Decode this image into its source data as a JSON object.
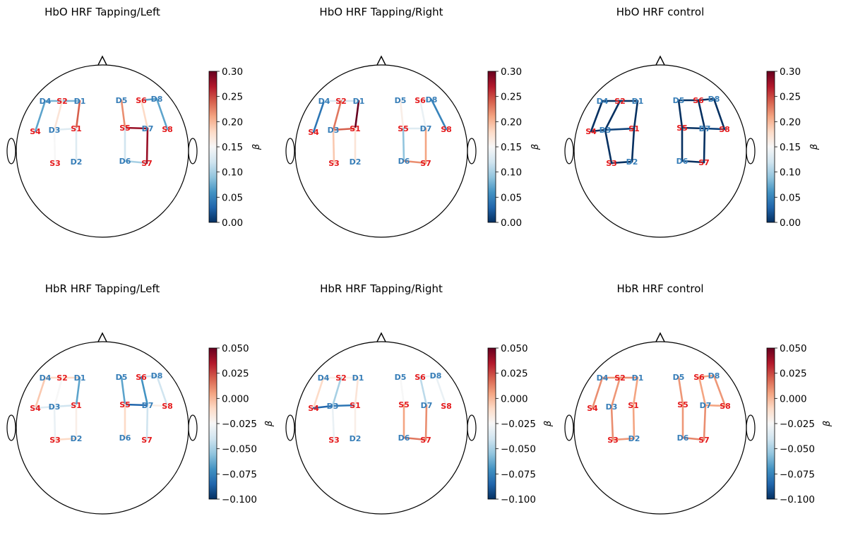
{
  "chart_data": [
    {
      "type": "topomap",
      "title": "HbO HRF Tapping/Left",
      "colorbar": {
        "label": "β",
        "min": 0.0,
        "max": 0.3,
        "ticks": [
          "0.00",
          "0.05",
          "0.10",
          "0.15",
          "0.20",
          "0.25",
          "0.30"
        ]
      },
      "channels": [
        {
          "pair": [
            "S4",
            "D4"
          ],
          "value": 0.07
        },
        {
          "pair": [
            "S2",
            "D4"
          ],
          "value": 0.08
        },
        {
          "pair": [
            "S2",
            "D1"
          ],
          "value": 0.08
        },
        {
          "pair": [
            "S1",
            "D1"
          ],
          "value": 0.24
        },
        {
          "pair": [
            "S1",
            "D3"
          ],
          "value": 0.13
        },
        {
          "pair": [
            "S2",
            "D3"
          ],
          "value": 0.17
        },
        {
          "pair": [
            "S3",
            "D3"
          ],
          "value": 0.15
        },
        {
          "pair": [
            "S1",
            "D2"
          ],
          "value": 0.13
        },
        {
          "pair": [
            "S5",
            "D5"
          ],
          "value": 0.22
        },
        {
          "pair": [
            "S6",
            "D8"
          ],
          "value": 0.07
        },
        {
          "pair": [
            "S6",
            "D7"
          ],
          "value": 0.18
        },
        {
          "pair": [
            "S5",
            "D7"
          ],
          "value": 0.28
        },
        {
          "pair": [
            "S8",
            "D8"
          ],
          "value": 0.07
        },
        {
          "pair": [
            "S5",
            "D6"
          ],
          "value": 0.12
        },
        {
          "pair": [
            "S7",
            "D6"
          ],
          "value": 0.1
        },
        {
          "pair": [
            "S7",
            "D7"
          ],
          "value": 0.28
        }
      ]
    },
    {
      "type": "topomap",
      "title": "HbO HRF Tapping/Right",
      "colorbar": {
        "label": "β",
        "min": 0.0,
        "max": 0.3,
        "ticks": [
          "0.00",
          "0.05",
          "0.10",
          "0.15",
          "0.20",
          "0.25",
          "0.30"
        ]
      },
      "channels": [
        {
          "pair": [
            "S4",
            "D4"
          ],
          "value": 0.04
        },
        {
          "pair": [
            "S2",
            "D4"
          ],
          "value": 0.13
        },
        {
          "pair": [
            "S2",
            "D1"
          ],
          "value": 0.12
        },
        {
          "pair": [
            "S1",
            "D1"
          ],
          "value": 0.3
        },
        {
          "pair": [
            "S1",
            "D3"
          ],
          "value": 0.24
        },
        {
          "pair": [
            "S2",
            "D3"
          ],
          "value": 0.23
        },
        {
          "pair": [
            "S3",
            "D3"
          ],
          "value": 0.19
        },
        {
          "pair": [
            "S1",
            "D2"
          ],
          "value": 0.17
        },
        {
          "pair": [
            "S5",
            "D5"
          ],
          "value": 0.16
        },
        {
          "pair": [
            "S6",
            "D8"
          ],
          "value": 0.13
        },
        {
          "pair": [
            "S6",
            "D7"
          ],
          "value": 0.14
        },
        {
          "pair": [
            "S5",
            "D7"
          ],
          "value": 0.13
        },
        {
          "pair": [
            "S8",
            "D8"
          ],
          "value": 0.05
        },
        {
          "pair": [
            "S5",
            "D6"
          ],
          "value": 0.09
        },
        {
          "pair": [
            "S7",
            "D6"
          ],
          "value": 0.22
        },
        {
          "pair": [
            "S7",
            "D7"
          ],
          "value": 0.21
        }
      ]
    },
    {
      "type": "topomap",
      "title": "HbO HRF control",
      "colorbar": {
        "label": "β",
        "min": 0.0,
        "max": 0.3,
        "ticks": [
          "0.00",
          "0.05",
          "0.10",
          "0.15",
          "0.20",
          "0.25",
          "0.30"
        ]
      },
      "channels": [
        {
          "pair": [
            "S4",
            "D4"
          ],
          "value": 0.0
        },
        {
          "pair": [
            "S2",
            "D4"
          ],
          "value": 0.0
        },
        {
          "pair": [
            "S2",
            "D1"
          ],
          "value": 0.0
        },
        {
          "pair": [
            "S1",
            "D1"
          ],
          "value": 0.0
        },
        {
          "pair": [
            "S1",
            "D3"
          ],
          "value": 0.01
        },
        {
          "pair": [
            "S2",
            "D3"
          ],
          "value": 0.0
        },
        {
          "pair": [
            "S3",
            "D3"
          ],
          "value": 0.0
        },
        {
          "pair": [
            "S3",
            "D2"
          ],
          "value": 0.0
        },
        {
          "pair": [
            "S1",
            "D2"
          ],
          "value": 0.0
        },
        {
          "pair": [
            "S4",
            "D3"
          ],
          "value": 0.0
        },
        {
          "pair": [
            "S5",
            "D5"
          ],
          "value": 0.0
        },
        {
          "pair": [
            "S6",
            "D5"
          ],
          "value": 0.0
        },
        {
          "pair": [
            "S6",
            "D8"
          ],
          "value": 0.0
        },
        {
          "pair": [
            "S6",
            "D7"
          ],
          "value": 0.0
        },
        {
          "pair": [
            "S5",
            "D7"
          ],
          "value": 0.0
        },
        {
          "pair": [
            "S8",
            "D8"
          ],
          "value": 0.0
        },
        {
          "pair": [
            "S8",
            "D7"
          ],
          "value": 0.01
        },
        {
          "pair": [
            "S5",
            "D6"
          ],
          "value": 0.0
        },
        {
          "pair": [
            "S7",
            "D6"
          ],
          "value": 0.0
        },
        {
          "pair": [
            "S7",
            "D7"
          ],
          "value": 0.0
        }
      ]
    },
    {
      "type": "topomap",
      "title": "HbR HRF Tapping/Left",
      "colorbar": {
        "label": "β",
        "min": -0.1,
        "max": 0.05,
        "ticks": [
          "0.050",
          "0.025",
          "0.000",
          "−0.025",
          "−0.050",
          "−0.075",
          "−0.100"
        ]
      },
      "channels": [
        {
          "pair": [
            "S4",
            "D4"
          ],
          "value": -0.005
        },
        {
          "pair": [
            "S2",
            "D4"
          ],
          "value": -0.01
        },
        {
          "pair": [
            "S2",
            "D1"
          ],
          "value": -0.01
        },
        {
          "pair": [
            "S1",
            "D1"
          ],
          "value": -0.065
        },
        {
          "pair": [
            "S4",
            "D3"
          ],
          "value": -0.035
        },
        {
          "pair": [
            "S1",
            "D3"
          ],
          "value": -0.04
        },
        {
          "pair": [
            "S2",
            "D3"
          ],
          "value": -0.025
        },
        {
          "pair": [
            "S3",
            "D3"
          ],
          "value": -0.03
        },
        {
          "pair": [
            "S3",
            "D2"
          ],
          "value": -0.01
        },
        {
          "pair": [
            "S1",
            "D2"
          ],
          "value": -0.02
        },
        {
          "pair": [
            "S5",
            "D5"
          ],
          "value": -0.065
        },
        {
          "pair": [
            "S6",
            "D8"
          ],
          "value": -0.04
        },
        {
          "pair": [
            "S6",
            "D7"
          ],
          "value": -0.07
        },
        {
          "pair": [
            "S5",
            "D7"
          ],
          "value": -0.085
        },
        {
          "pair": [
            "S8",
            "D8"
          ],
          "value": -0.04
        },
        {
          "pair": [
            "S8",
            "D7"
          ],
          "value": -0.02
        },
        {
          "pair": [
            "S5",
            "D6"
          ],
          "value": -0.01
        },
        {
          "pair": [
            "S7",
            "D7"
          ],
          "value": -0.04
        }
      ]
    },
    {
      "type": "topomap",
      "title": "HbR HRF Tapping/Right",
      "colorbar": {
        "label": "β",
        "min": -0.1,
        "max": 0.05,
        "ticks": [
          "0.050",
          "0.025",
          "0.000",
          "−0.025",
          "−0.050",
          "−0.075",
          "−0.100"
        ]
      },
      "channels": [
        {
          "pair": [
            "S4",
            "D4"
          ],
          "value": -0.01
        },
        {
          "pair": [
            "S2",
            "D4"
          ],
          "value": -0.02
        },
        {
          "pair": [
            "S2",
            "D1"
          ],
          "value": -0.02
        },
        {
          "pair": [
            "S1",
            "D1"
          ],
          "value": -0.015
        },
        {
          "pair": [
            "S4",
            "D3"
          ],
          "value": -0.085
        },
        {
          "pair": [
            "S1",
            "D3"
          ],
          "value": -0.08
        },
        {
          "pair": [
            "S2",
            "D3"
          ],
          "value": -0.05
        },
        {
          "pair": [
            "S3",
            "D3"
          ],
          "value": -0.03
        },
        {
          "pair": [
            "S1",
            "D2"
          ],
          "value": -0.02
        },
        {
          "pair": [
            "S5",
            "D5"
          ],
          "value": -0.025
        },
        {
          "pair": [
            "S6",
            "D8"
          ],
          "value": -0.03
        },
        {
          "pair": [
            "S6",
            "D7"
          ],
          "value": -0.045
        },
        {
          "pair": [
            "S8",
            "D8"
          ],
          "value": -0.03
        },
        {
          "pair": [
            "S5",
            "D6"
          ],
          "value": 0.005
        },
        {
          "pair": [
            "S7",
            "D6"
          ],
          "value": 0.015
        },
        {
          "pair": [
            "S7",
            "D7"
          ],
          "value": 0.01
        }
      ]
    },
    {
      "type": "topomap",
      "title": "HbR HRF control",
      "colorbar": {
        "label": "β",
        "min": -0.1,
        "max": 0.05,
        "ticks": [
          "0.050",
          "0.025",
          "0.000",
          "−0.025",
          "−0.050",
          "−0.075",
          "−0.100"
        ]
      },
      "channels": [
        {
          "pair": [
            "S4",
            "D4"
          ],
          "value": 0.01
        },
        {
          "pair": [
            "S2",
            "D4"
          ],
          "value": 0.008
        },
        {
          "pair": [
            "S2",
            "D1"
          ],
          "value": 0.01
        },
        {
          "pair": [
            "S1",
            "D1"
          ],
          "value": 0.005
        },
        {
          "pair": [
            "S2",
            "D3"
          ],
          "value": 0.008
        },
        {
          "pair": [
            "S3",
            "D3"
          ],
          "value": 0.01
        },
        {
          "pair": [
            "S3",
            "D2"
          ],
          "value": 0.008
        },
        {
          "pair": [
            "S1",
            "D2"
          ],
          "value": 0.005
        },
        {
          "pair": [
            "S5",
            "D5"
          ],
          "value": 0.008
        },
        {
          "pair": [
            "S6",
            "D8"
          ],
          "value": 0.005
        },
        {
          "pair": [
            "S6",
            "D7"
          ],
          "value": 0.005
        },
        {
          "pair": [
            "S8",
            "D8"
          ],
          "value": 0.008
        },
        {
          "pair": [
            "S8",
            "D7"
          ],
          "value": 0.005
        },
        {
          "pair": [
            "S5",
            "D6"
          ],
          "value": 0.008
        },
        {
          "pair": [
            "S7",
            "D6"
          ],
          "value": 0.012
        },
        {
          "pair": [
            "S7",
            "D7"
          ],
          "value": 0.01
        }
      ]
    }
  ]
}
